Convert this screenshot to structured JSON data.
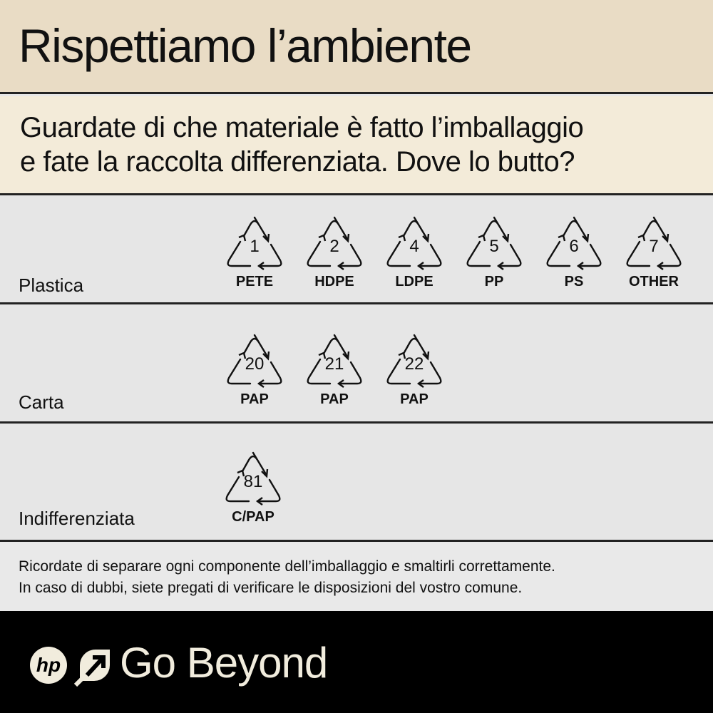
{
  "header": {
    "title": "Rispettiamo l’ambiente"
  },
  "subtitle": {
    "line1": "Guardate di che materiale è fatto l’imballaggio",
    "line2": "e fate la raccolta differenziata.  Dove lo butto?"
  },
  "sections": [
    {
      "label": "Plastica",
      "symbols": [
        {
          "code": "1",
          "material": "PETE"
        },
        {
          "code": "2",
          "material": "HDPE"
        },
        {
          "code": "4",
          "material": "LDPE"
        },
        {
          "code": "5",
          "material": "PP"
        },
        {
          "code": "6",
          "material": "PS"
        },
        {
          "code": "7",
          "material": "OTHER"
        }
      ]
    },
    {
      "label": "Carta",
      "symbols": [
        {
          "code": "20",
          "material": "PAP"
        },
        {
          "code": "21",
          "material": "PAP"
        },
        {
          "code": "22",
          "material": "PAP"
        }
      ]
    },
    {
      "label": "Indifferenziata",
      "symbols": [
        {
          "code": "81",
          "material": "C/PAP"
        }
      ]
    }
  ],
  "note": {
    "line1": "Ricordate di separare ogni componente dell’imballaggio e smaltirli correttamente.",
    "line2": "In caso di dubbi, siete pregati di verificare le disposizioni del vostro comune."
  },
  "footer": {
    "logo": "hp",
    "tagline": "Go Beyond",
    "icons": [
      "hp-logo-icon",
      "arrow-up-right-icon"
    ]
  },
  "colors": {
    "header_bg": "#e9dcc5",
    "subtitle_bg": "#f3ebd9",
    "section_bg": "#e6e6e6",
    "footer_bg": "#000000",
    "footer_text": "#f1ecdd"
  }
}
